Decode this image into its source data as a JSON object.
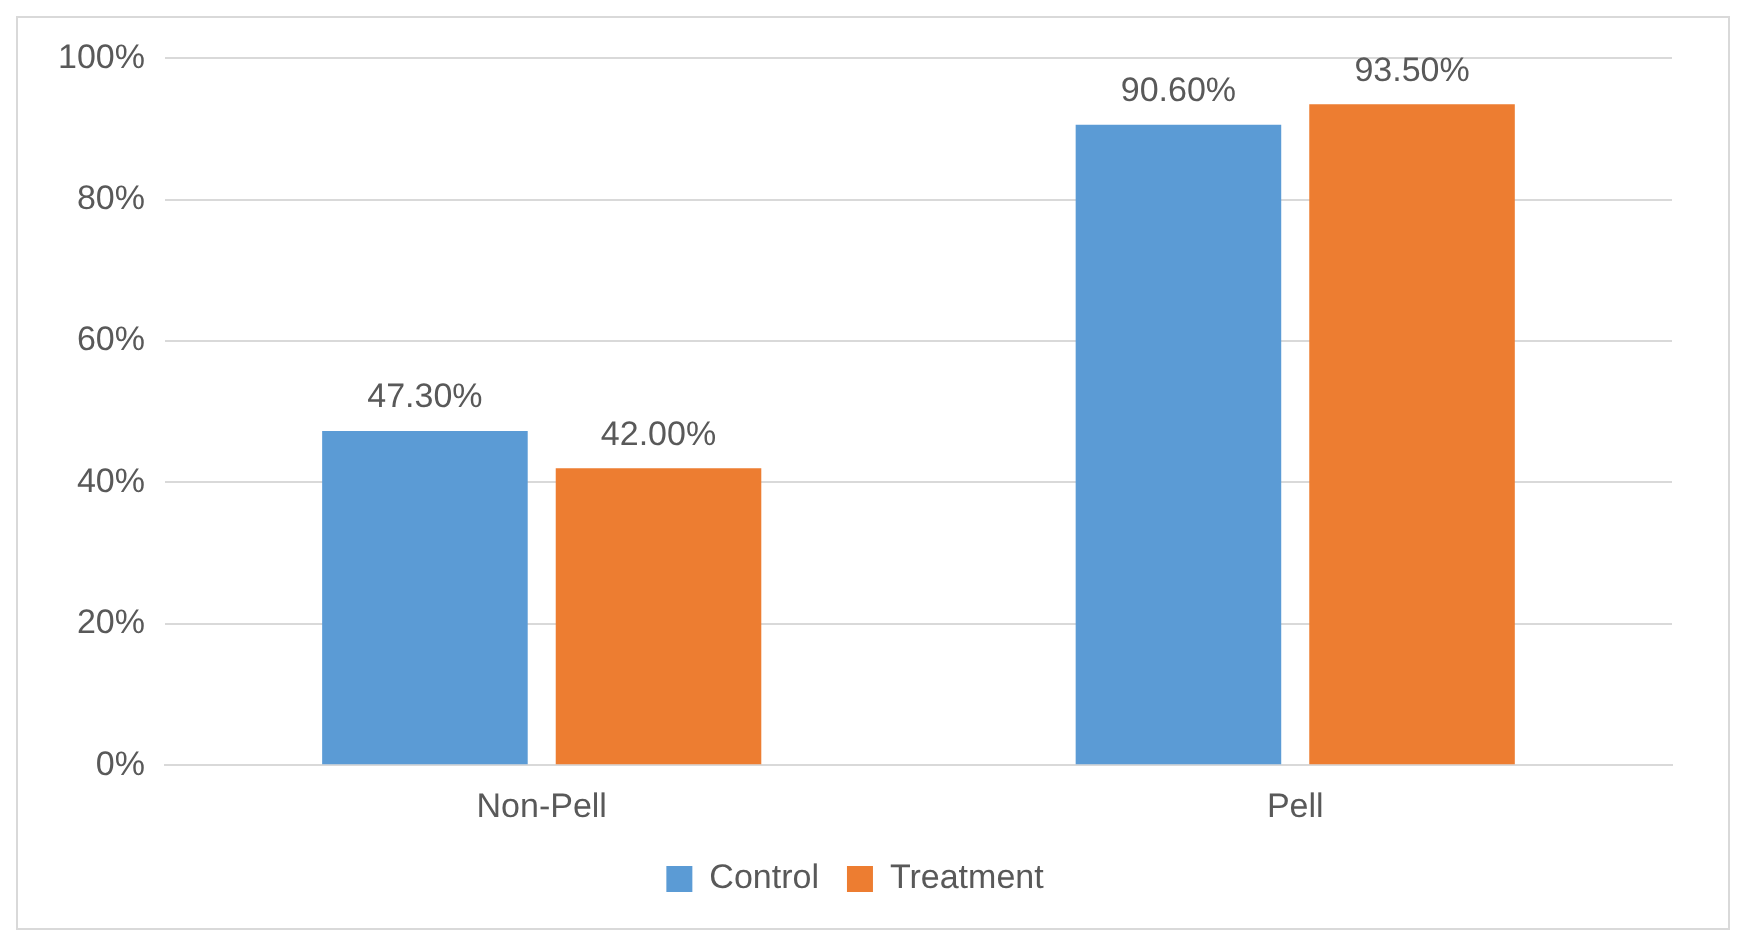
{
  "chart_data": {
    "type": "bar",
    "categories": [
      "Non-Pell",
      "Pell"
    ],
    "series": [
      {
        "name": "Control",
        "color": "#5b9bd5",
        "values": [
          47.3,
          90.6
        ],
        "value_labels": [
          "47.30%",
          "90.60%"
        ]
      },
      {
        "name": "Treatment",
        "color": "#ed7d31",
        "values": [
          42.0,
          93.5
        ],
        "value_labels": [
          "42.00%",
          "93.50%"
        ]
      }
    ],
    "ylim": [
      0,
      100
    ],
    "yticks": [
      {
        "value": 0,
        "label": "0%"
      },
      {
        "value": 20,
        "label": "20%"
      },
      {
        "value": 40,
        "label": "40%"
      },
      {
        "value": 60,
        "label": "60%"
      },
      {
        "value": 80,
        "label": "80%"
      },
      {
        "value": 100,
        "label": "100%"
      }
    ],
    "grid": "y",
    "legend": "bottom"
  }
}
